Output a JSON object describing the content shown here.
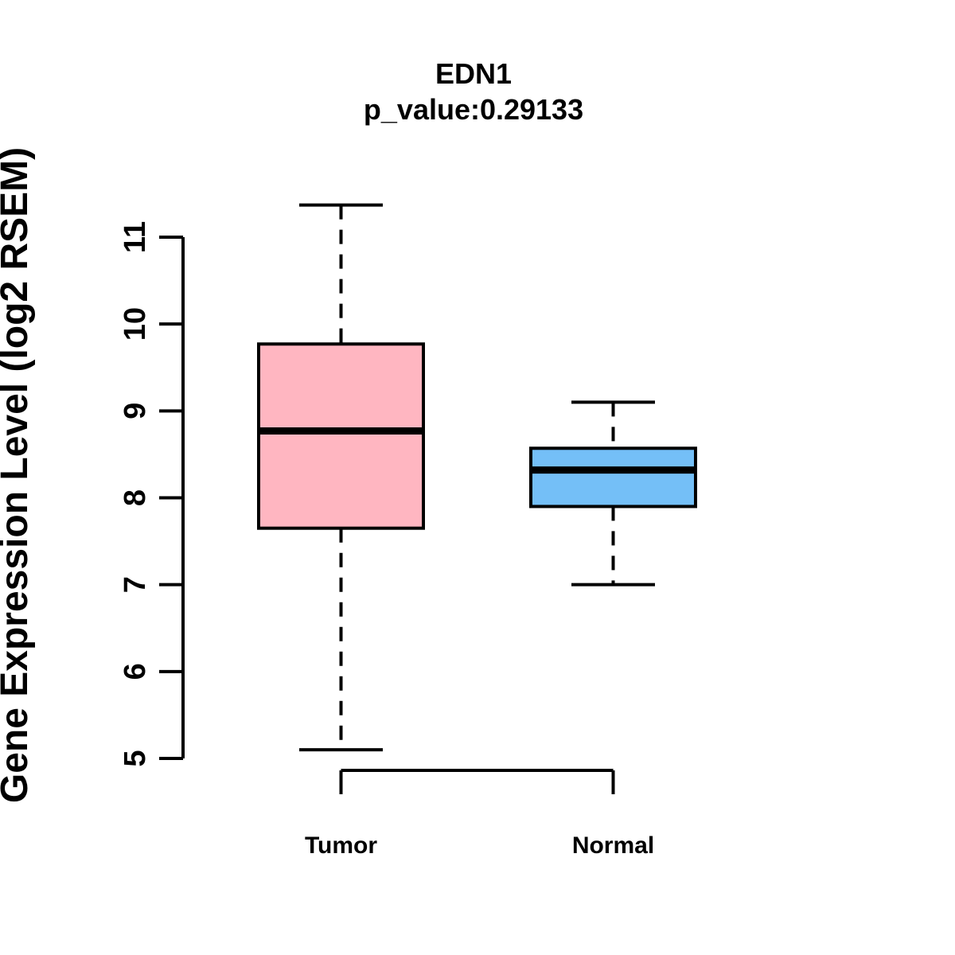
{
  "figure": {
    "title": "EDN1",
    "subtitle": "p_value:0.29133",
    "ylabel": "Gene Expression Level (log2 RSEM)"
  },
  "chart_data": {
    "type": "boxplot",
    "title": "EDN1",
    "subtitle": "p_value:0.29133",
    "ylabel": "Gene Expression Level (log2 RSEM)",
    "xlabel": "",
    "categories": [
      "Tumor",
      "Normal"
    ],
    "ylim": [
      5,
      11
    ],
    "yticks": [
      5,
      6,
      7,
      8,
      9,
      10,
      11
    ],
    "grid": false,
    "legend": "none",
    "line_color": "#000000",
    "background_color": "#ffffff",
    "series": [
      {
        "name": "Tumor",
        "fill_color": "#FFB6C1",
        "whisker_low": 5.1,
        "q1": 7.65,
        "median": 8.77,
        "q3": 9.77,
        "whisker_high": 11.37
      },
      {
        "name": "Normal",
        "fill_color": "#74BFF7",
        "whisker_low": 7.0,
        "q1": 7.9,
        "median": 8.32,
        "q3": 8.57,
        "whisker_high": 9.1
      }
    ]
  }
}
